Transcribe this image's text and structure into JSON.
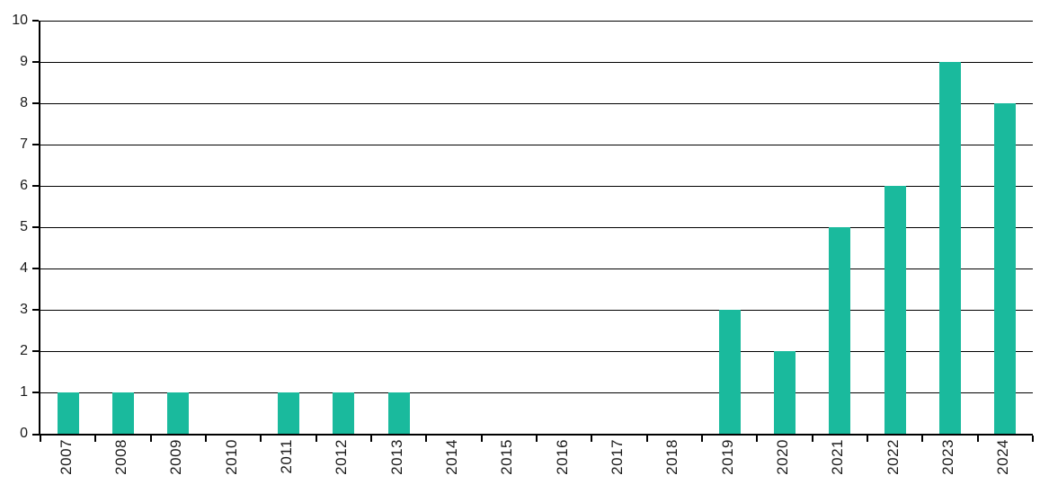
{
  "chart_data": {
    "type": "bar",
    "title": "",
    "xlabel": "",
    "ylabel": "",
    "categories": [
      "2007",
      "2008",
      "2009",
      "2010",
      "2011",
      "2012",
      "2013",
      "2014",
      "2015",
      "2016",
      "2017",
      "2018",
      "2019",
      "2020",
      "2021",
      "2022",
      "2023",
      "2024"
    ],
    "values": [
      1,
      1,
      1,
      0,
      1,
      1,
      1,
      0,
      0,
      0,
      0,
      0,
      3,
      2,
      5,
      6,
      9,
      8
    ],
    "ylim": [
      0,
      10
    ],
    "yticks": [
      0,
      1,
      2,
      3,
      4,
      5,
      6,
      7,
      8,
      9,
      10
    ],
    "grid": "horizontal",
    "legend_position": "none",
    "bar_color": "#1ABA9D",
    "axis_color": "#000000",
    "gridline_color": "#000000",
    "tick_label_color": "#1a1a1a",
    "background_color": "#ffffff"
  }
}
